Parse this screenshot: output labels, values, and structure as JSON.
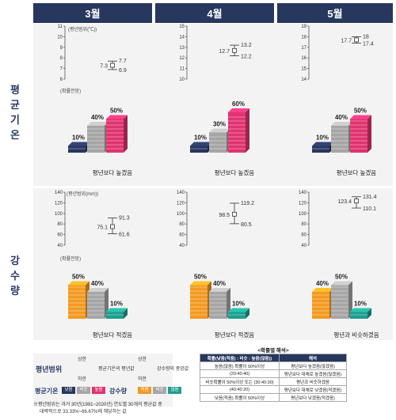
{
  "months": [
    "3월",
    "4월",
    "5월"
  ],
  "row_labels": {
    "temperature": "평균기온",
    "precipitation": "강수량"
  },
  "panel_notes": {
    "temp_range": "(평년범위(℃))",
    "prob": "(확률전망)",
    "precip_range": "(평년범위(mm))"
  },
  "temp_captions": [
    "평년보다 높겠음",
    "평년보다 높겠음",
    "평년보다 높겠음"
  ],
  "precip_captions": [
    "평년보다 적겠음",
    "평년보다 적겠음",
    "평년과 비슷하겠음"
  ],
  "legend": {
    "range_title": "평년범위",
    "upper": "상한",
    "lower": "하한",
    "temp_mid": "평균기온의 평년값",
    "precip_mid": "강수량의 중앙값",
    "temp_title": "평균기온",
    "temp_cats": [
      "낮음",
      "비슷",
      "높음"
    ],
    "precip_title": "강수량",
    "precip_cats": [
      "적음",
      "비슷",
      "많음"
    ],
    "footnote_1": "※평년범위는 과거 30년(1991~2020년) 연도별 30개의 평균값 중",
    "footnote_2": "대략적으로 33.33%~66.67%에 해당하는 값"
  },
  "table": {
    "title": "<확률별 해석>",
    "head": [
      "확률(낮음(적음) : 비슷 : 높음(많음))",
      "해석"
    ],
    "rows": [
      [
        "높음(많음) 확률이 50%이상",
        "평년보다 높겠음(많겠음)"
      ],
      [
        "(20:40:40)",
        "평년보다 대체로 높겠음(많겠음)"
      ],
      [
        "비슷확률이 50%이상 또는 (30:40:30)",
        "평년과 비슷하겠음"
      ],
      [
        "(40:40:20)",
        "평년보다 대체로 낮겠음(적겠음)"
      ],
      [
        "낮음(적음) 확률이 50%이상",
        "평년보다 낮겠음(적겠음)"
      ]
    ]
  },
  "colors": {
    "header": "#27375e",
    "low": "#27375e",
    "similar": "#a6a6a6",
    "high": "#e0336f",
    "less": "#f39a21",
    "more": "#1f9e8e"
  },
  "chart_data": [
    {
      "type": "range",
      "panel": "temperature",
      "month": "3월",
      "ylim": [
        6,
        11
      ],
      "yticks": [
        6,
        7,
        8,
        9,
        10,
        11
      ],
      "low": 6.9,
      "mid": 7.3,
      "high": 7.7
    },
    {
      "type": "range",
      "panel": "temperature",
      "month": "4월",
      "ylim": [
        10,
        15
      ],
      "yticks": [
        10,
        11,
        12,
        13,
        14,
        15
      ],
      "low": 12.2,
      "mid": 12.7,
      "high": 13.2
    },
    {
      "type": "range",
      "panel": "temperature",
      "month": "5월",
      "ylim": [
        14,
        19
      ],
      "yticks": [
        14,
        15,
        16,
        17,
        18,
        19
      ],
      "low": 17.4,
      "mid": 17.7,
      "high": 18.0
    },
    {
      "type": "bar",
      "panel": "temperature",
      "month": "3월",
      "categories": [
        "낮음",
        "비슷",
        "높음"
      ],
      "values": [
        10,
        40,
        50
      ]
    },
    {
      "type": "bar",
      "panel": "temperature",
      "month": "4월",
      "categories": [
        "낮음",
        "비슷",
        "높음"
      ],
      "values": [
        10,
        30,
        60
      ]
    },
    {
      "type": "bar",
      "panel": "temperature",
      "month": "5월",
      "categories": [
        "낮음",
        "비슷",
        "높음"
      ],
      "values": [
        10,
        40,
        50
      ]
    },
    {
      "type": "range",
      "panel": "precipitation",
      "month": "3월",
      "ylim": [
        40,
        140
      ],
      "yticks": [
        40,
        60,
        80,
        100,
        120,
        140
      ],
      "low": 61.6,
      "mid": 75.1,
      "high": 91.3
    },
    {
      "type": "range",
      "panel": "precipitation",
      "month": "4월",
      "ylim": [
        40,
        140
      ],
      "yticks": [
        40,
        60,
        80,
        100,
        120,
        140
      ],
      "low": 80.5,
      "mid": 98.5,
      "high": 119.2
    },
    {
      "type": "range",
      "panel": "precipitation",
      "month": "5월",
      "ylim": [
        40,
        140
      ],
      "yticks": [
        40,
        60,
        80,
        100,
        120,
        140
      ],
      "low": 110.1,
      "mid": 123.4,
      "high": 131.4
    },
    {
      "type": "bar",
      "panel": "precipitation",
      "month": "3월",
      "categories": [
        "적음",
        "비슷",
        "많음"
      ],
      "values": [
        50,
        40,
        10
      ]
    },
    {
      "type": "bar",
      "panel": "precipitation",
      "month": "4월",
      "categories": [
        "적음",
        "비슷",
        "많음"
      ],
      "values": [
        50,
        40,
        10
      ]
    },
    {
      "type": "bar",
      "panel": "precipitation",
      "month": "5월",
      "categories": [
        "적음",
        "비슷",
        "많음"
      ],
      "values": [
        40,
        50,
        10
      ]
    }
  ]
}
